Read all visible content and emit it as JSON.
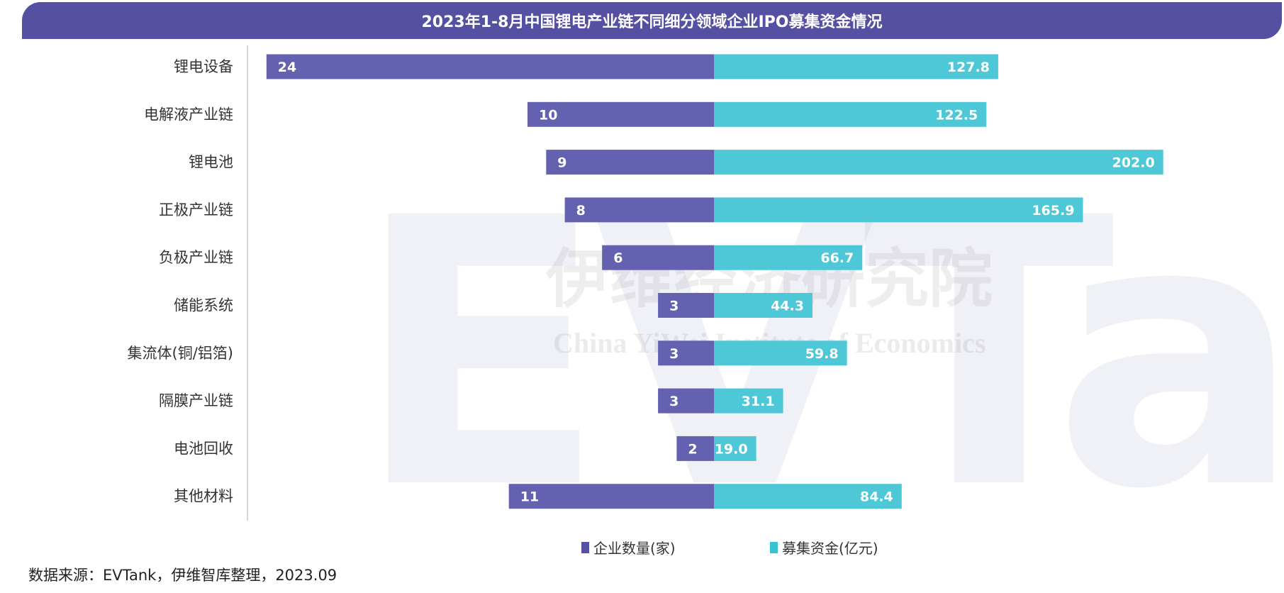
{
  "chart_data": {
    "type": "bar",
    "orientation": "horizontal-diverging",
    "title": "2023年1-8月中国锂电产业链不同细分领域企业IPO募集资金情况",
    "categories": [
      "锂电设备",
      "电解液产业链",
      "锂电池",
      "正极产业链",
      "负极产业链",
      "储能系统",
      "集流体(铜/铝箔)",
      "隔膜产业链",
      "电池回收",
      "其他材料"
    ],
    "series": [
      {
        "name": "企业数量(家)",
        "color": "#6461b0",
        "side": "left",
        "values": [
          24,
          10,
          9,
          8,
          6,
          3,
          3,
          3,
          2,
          11
        ]
      },
      {
        "name": "募集资金(亿元)",
        "color": "#4ec8d6",
        "side": "right",
        "values": [
          127.8,
          122.5,
          202.0,
          165.9,
          66.7,
          44.3,
          59.8,
          31.1,
          19.0,
          84.4
        ]
      }
    ],
    "value_labels": {
      "left": [
        "24",
        "10",
        "9",
        "8",
        "6",
        "3",
        "3",
        "3",
        "2",
        "11"
      ],
      "right": [
        "127.8",
        "122.5",
        "202.0",
        "165.9",
        "66.7",
        "44.3",
        "59.8",
        "31.1",
        "19.0",
        "84.4"
      ]
    },
    "legend_position": "bottom",
    "grid": false
  },
  "source": "数据来源：EVTank，伊维智库整理，2023.09",
  "watermark": {
    "logo": "EVTank",
    "cn": "伊维经济研究院",
    "en": "China YiWei Institute of Economics",
    "brand": "伊维智库"
  }
}
